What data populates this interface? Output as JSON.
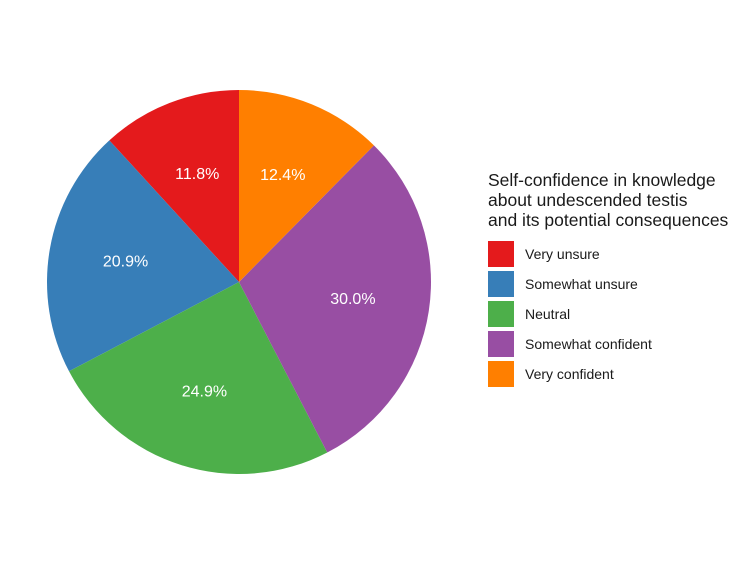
{
  "chart_data": {
    "type": "pie",
    "categories": [
      "Very unsure",
      "Somewhat unsure",
      "Neutral",
      "Somewhat confident",
      "Very confident"
    ],
    "values": [
      11.8,
      20.9,
      24.9,
      30.0,
      12.4
    ],
    "value_labels": [
      "11.8%",
      "20.9%",
      "24.9%",
      "30.0%",
      "12.4%"
    ],
    "colors": [
      "#e41a1c",
      "#377eb8",
      "#4daf4a",
      "#984ea3",
      "#ff7f00"
    ],
    "start": "top, counterclockwise",
    "legend": {
      "title_lines": [
        "Self-confidence in knowledge",
        "about undescended testis",
        "and its potential consequences"
      ],
      "placement": "right"
    }
  }
}
